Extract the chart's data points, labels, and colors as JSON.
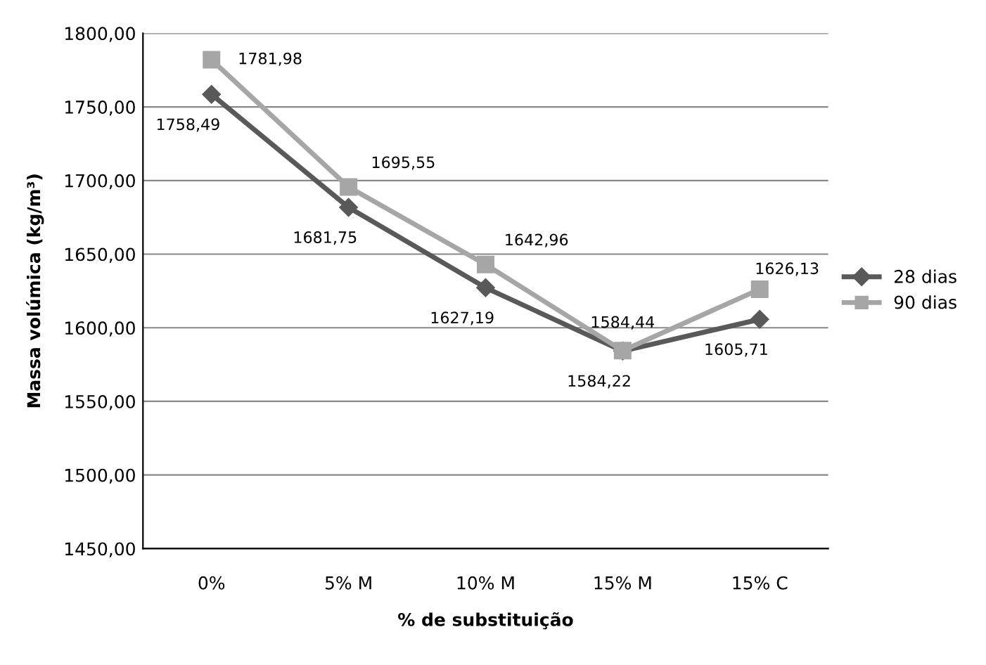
{
  "chart_data": {
    "type": "line",
    "xlabel": "% de substituição",
    "ylabel": "Massa volúmica (kg/m³)",
    "categories": [
      "0%",
      "5% M",
      "10% M",
      "15% M",
      "15% C"
    ],
    "series": [
      {
        "name": "28 dias",
        "color": "#595959",
        "marker": "diamond",
        "values": [
          1758.49,
          1681.75,
          1627.19,
          1584.22,
          1605.71
        ],
        "value_labels": [
          "1758,49",
          "1681,75",
          "1627,19",
          "1584,22",
          "1605,71"
        ]
      },
      {
        "name": "90 dias",
        "color": "#a6a6a6",
        "marker": "square",
        "values": [
          1781.98,
          1695.55,
          1642.96,
          1584.44,
          1626.13
        ],
        "value_labels": [
          "1781,98",
          "1695,55",
          "1642,96",
          "1584,44",
          "1626,13"
        ]
      }
    ],
    "ylim": [
      1450,
      1800
    ],
    "yticks": [
      {
        "value": 1450,
        "label": "1450,00"
      },
      {
        "value": 1500,
        "label": "1500,00"
      },
      {
        "value": 1550,
        "label": "1550,00"
      },
      {
        "value": 1600,
        "label": "1600,00"
      },
      {
        "value": 1650,
        "label": "1650,00"
      },
      {
        "value": 1700,
        "label": "1700,00"
      },
      {
        "value": 1750,
        "label": "1750,00"
      },
      {
        "value": 1800,
        "label": "1800,00"
      }
    ],
    "grid": "y",
    "legend": "right",
    "line_style": "solid"
  }
}
